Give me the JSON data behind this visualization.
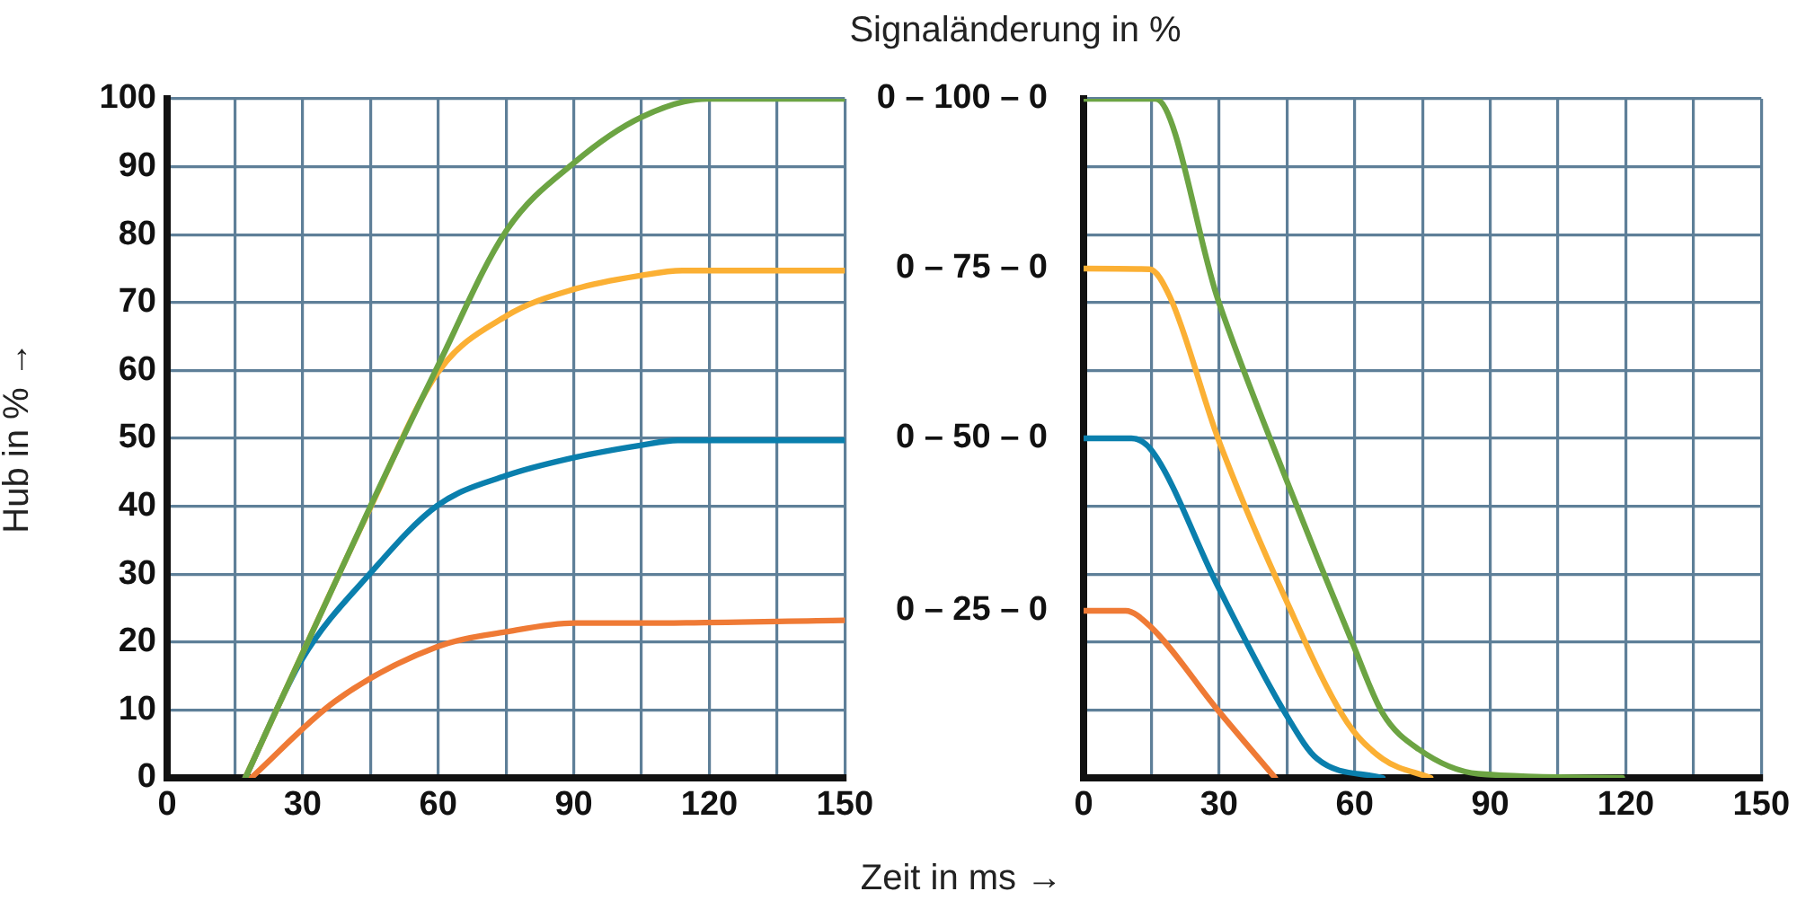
{
  "chart_data": [
    {
      "type": "line",
      "ylabel": "Hub in % →",
      "xlabel": "Zeit in ms →",
      "xlim": [
        0,
        150
      ],
      "xticks": [
        0,
        {
          "value": 15,
          "label": null
        },
        30,
        {
          "value": 45,
          "label": null
        },
        60,
        {
          "value": 75,
          "label": null
        },
        90,
        {
          "value": 105,
          "label": null
        },
        120,
        {
          "value": 135,
          "label": null
        },
        150
      ],
      "ylim": [
        0,
        100
      ],
      "yticks": [
        0,
        10,
        20,
        30,
        40,
        50,
        60,
        70,
        80,
        90,
        100
      ],
      "grid": true,
      "legend": false,
      "series": [
        {
          "color": "#6ca443",
          "x": [
            17.3,
            45,
            59.8,
            75,
            90.3,
            105,
            119.5,
            150
          ],
          "values": [
            0,
            40,
            60.5,
            80.5,
            90.7,
            97.3,
            100,
            100
          ]
        },
        {
          "color": "#fbb034",
          "x": [
            17.3,
            45.2,
            59.8,
            75,
            90.3,
            105,
            114,
            150
          ],
          "values": [
            0,
            40.1,
            59.6,
            68,
            72,
            74,
            74.7,
            74.7
          ]
        },
        {
          "color": "#0a7fad",
          "x": [
            17.3,
            29.9,
            45.2,
            59.8,
            75,
            90.3,
            105,
            113,
            150
          ],
          "values": [
            0,
            17.5,
            30.3,
            40.1,
            44.5,
            47.2,
            49,
            49.7,
            49.7
          ]
        },
        {
          "color": "#ef7a35",
          "x": [
            18.6,
            37.2,
            59.8,
            75,
            90.3,
            105,
            150
          ],
          "values": [
            0,
            11.3,
            19.3,
            21.5,
            22.8,
            22.8,
            23.2
          ]
        }
      ]
    },
    {
      "type": "line",
      "title": "Signaländerung in %",
      "xlim": [
        0,
        150
      ],
      "xticks": [
        0,
        {
          "value": 15,
          "label": null
        },
        30,
        {
          "value": 45,
          "label": null
        },
        60,
        {
          "value": 75,
          "label": null
        },
        90,
        {
          "value": 105,
          "label": null
        },
        120,
        {
          "value": 135,
          "label": null
        },
        150
      ],
      "ylim": [
        0,
        100
      ],
      "yticks": [
        0,
        10,
        20,
        30,
        40,
        50,
        60,
        70,
        80,
        90,
        100
      ],
      "tick_labels": "x",
      "grid": true,
      "legend": false,
      "annotations": [
        "0 – 100 – 0",
        "0 – 75 – 0",
        "0 – 50 – 0",
        "0 – 25 – 0"
      ],
      "series": [
        {
          "color": "#6ca443",
          "x": [
            0,
            15.9,
            29.8,
            45,
            59.6,
            66.2,
            74.2,
            87.4,
            119.2
          ],
          "values": [
            100,
            100,
            70.3,
            43.7,
            19.7,
            9.5,
            4.2,
            0.6,
            0
          ]
        },
        {
          "color": "#fbb034",
          "x": [
            0,
            14.6,
            19.2,
            29.8,
            45,
            58.3,
            66.2,
            76.8
          ],
          "values": [
            75,
            74.9,
            70.7,
            49.9,
            25.9,
            8.2,
            2.8,
            0
          ]
        },
        {
          "color": "#0a7fad",
          "x": [
            0,
            10.6,
            15.2,
            29.8,
            45,
            51.7,
            66.2
          ],
          "values": [
            50,
            50,
            48.1,
            28.1,
            9.1,
            2.8,
            0
          ]
        },
        {
          "color": "#ef7a35",
          "x": [
            0,
            9.3,
            14.6,
            29.8,
            42.4
          ],
          "values": [
            24.6,
            24.6,
            22.4,
            9.9,
            0
          ]
        }
      ]
    }
  ]
}
